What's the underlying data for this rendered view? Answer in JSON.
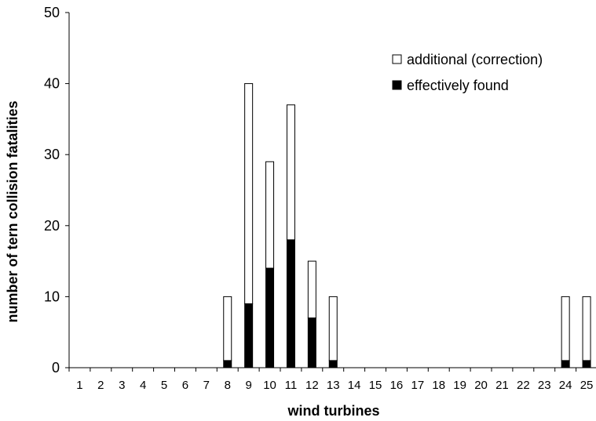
{
  "chart_data": {
    "type": "bar",
    "stacked": true,
    "title": "",
    "xlabel": "wind turbines",
    "ylabel": "number of tern collision fatalities",
    "ylim": [
      0,
      50
    ],
    "yticks": [
      0,
      10,
      20,
      30,
      40,
      50
    ],
    "categories": [
      "1",
      "2",
      "3",
      "4",
      "5",
      "6",
      "7",
      "8",
      "9",
      "10",
      "11",
      "12",
      "13",
      "14",
      "15",
      "16",
      "17",
      "18",
      "19",
      "20",
      "21",
      "22",
      "23",
      "24",
      "25"
    ],
    "series": [
      {
        "name": "effectively found",
        "color": "#000000",
        "values": [
          0,
          0,
          0,
          0,
          0,
          0,
          0,
          1,
          9,
          14,
          18,
          7,
          1,
          0,
          0,
          0,
          0,
          0,
          0,
          0,
          0,
          0,
          0,
          1,
          1
        ]
      },
      {
        "name": "additional (correction)",
        "color": "#ffffff",
        "values": [
          0,
          0,
          0,
          0,
          0,
          0,
          0,
          9,
          31,
          15,
          19,
          8,
          9,
          0,
          0,
          0,
          0,
          0,
          0,
          0,
          0,
          0,
          0,
          9,
          9
        ]
      }
    ],
    "legend": {
      "placement": "top-right",
      "order": [
        "additional (correction)",
        "effectively found"
      ]
    },
    "grid": false
  }
}
